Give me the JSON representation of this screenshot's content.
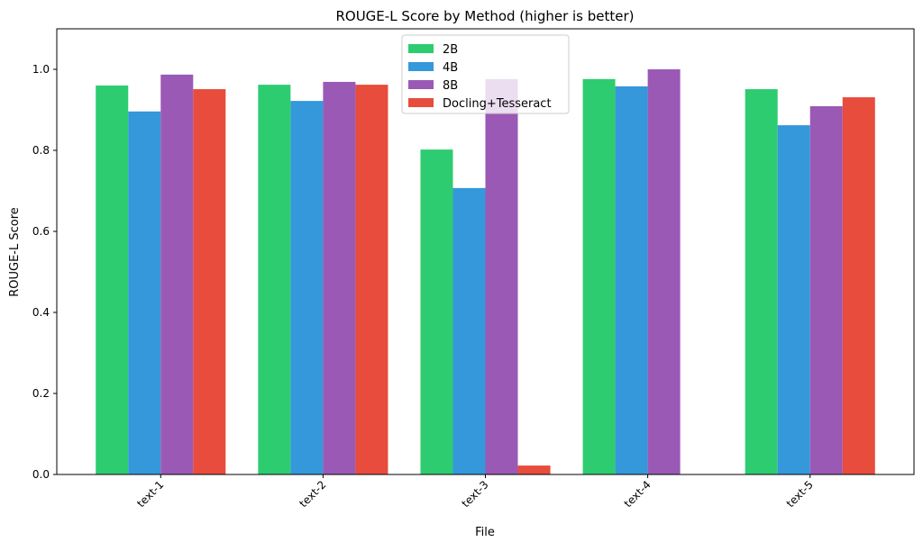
{
  "chart_data": {
    "type": "bar",
    "title": "ROUGE-L Score by Method (higher is better)",
    "xlabel": "File",
    "ylabel": "ROUGE-L Score",
    "categories": [
      "text-1",
      "text-2",
      "text-3",
      "text-4",
      "text-5"
    ],
    "ylim": [
      0,
      1.1
    ],
    "yticks": [
      0.0,
      0.2,
      0.4,
      0.6,
      0.8,
      1.0
    ],
    "ytick_labels": [
      "0.0",
      "0.2",
      "0.4",
      "0.6",
      "0.8",
      "1.0"
    ],
    "grid": false,
    "legend_position": "top-center",
    "series": [
      {
        "name": "2B",
        "color": "#2ecc71",
        "values": [
          0.96,
          0.962,
          0.802,
          0.976,
          0.951
        ]
      },
      {
        "name": "4B",
        "color": "#3498db",
        "values": [
          0.896,
          0.922,
          0.707,
          0.958,
          0.862
        ]
      },
      {
        "name": "8B",
        "color": "#9b59b6",
        "values": [
          0.987,
          0.969,
          0.976,
          1.0,
          0.909
        ]
      },
      {
        "name": "Docling+Tesseract",
        "color": "#e74c3c",
        "values": [
          0.951,
          0.962,
          0.022,
          0.0,
          0.931
        ]
      }
    ]
  }
}
